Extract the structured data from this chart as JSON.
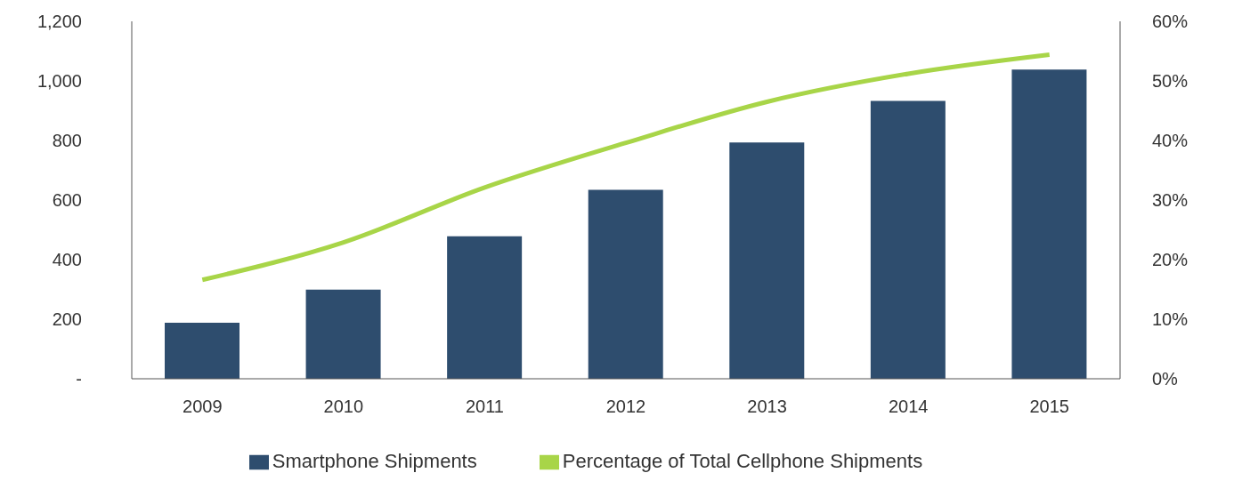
{
  "chart_data": {
    "type": "bar",
    "categories": [
      "2009",
      "2010",
      "2011",
      "2012",
      "2013",
      "2014",
      "2015"
    ],
    "series": [
      {
        "name": "Smartphone Shipments",
        "color": "#2e4d6e",
        "values": [
          188,
          299,
          478,
          634,
          793,
          933,
          1038
        ]
      },
      {
        "name": "Percentage of Total Cellphone Shipments",
        "type": "line",
        "axis": "y2",
        "color": "#a8d548",
        "values": [
          16.6,
          22.9,
          32.1,
          39.6,
          46.5,
          51.2,
          54.4
        ]
      }
    ],
    "ylim": [
      0,
      1200
    ],
    "yticks": [
      {
        "value": 0,
        "label": "-"
      },
      200,
      400,
      600,
      800,
      {
        "value": 1000,
        "label": "1,000"
      },
      {
        "value": 1200,
        "label": "1,200"
      }
    ],
    "y2lim": [
      0,
      60
    ],
    "y2ticks": [
      {
        "value": 0,
        "label": "0%"
      },
      {
        "value": 10,
        "label": "10%"
      },
      {
        "value": 20,
        "label": "20%"
      },
      {
        "value": 30,
        "label": "30%"
      },
      {
        "value": 40,
        "label": "40%"
      },
      {
        "value": 50,
        "label": "50%"
      },
      {
        "value": 60,
        "label": "60%"
      }
    ],
    "grid": false,
    "legend": "bottom",
    "marker": "none",
    "line_style": "solid"
  }
}
